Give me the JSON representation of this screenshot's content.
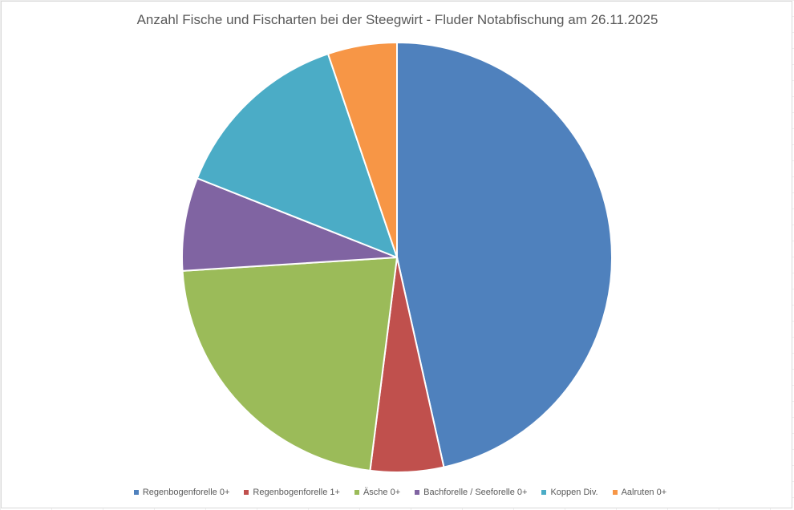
{
  "chart_data": {
    "type": "pie",
    "title": "Anzahl Fische und Fischarten bei der Steegwirt - Fluder Notabfischung am 26.11.2025",
    "legend_position": "bottom",
    "series": [
      {
        "name": "Regenbogenforelle 0+",
        "value": 46.5,
        "color": "#4F81BD"
      },
      {
        "name": "Regenbogenforelle 1+",
        "value": 5.5,
        "color": "#C0504D"
      },
      {
        "name": "Äsche 0+",
        "value": 22.0,
        "color": "#9BBB59"
      },
      {
        "name": "Bachforelle / Seeforelle 0+",
        "value": 7.0,
        "color": "#8064A2"
      },
      {
        "name": "Koppen Div.",
        "value": 13.8,
        "color": "#4BACC6"
      },
      {
        "name": "Aalruten 0+",
        "value": 5.2,
        "color": "#F79646"
      }
    ]
  }
}
